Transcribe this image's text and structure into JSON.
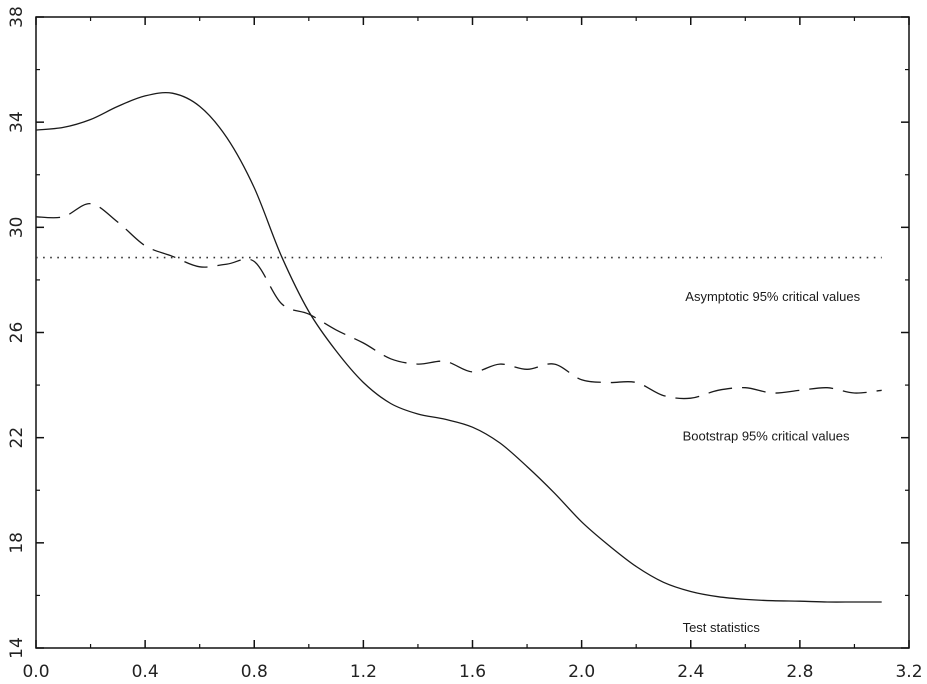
{
  "chart_data": {
    "type": "line",
    "title": "",
    "xlabel": "",
    "ylabel": "",
    "xlim": [
      0.0,
      3.2
    ],
    "ylim": [
      14,
      38
    ],
    "x_ticks": [
      "0.0",
      "0.4",
      "0.8",
      "1.2",
      "1.6",
      "2.0",
      "2.4",
      "2.8",
      "3.2"
    ],
    "y_ticks": [
      "14",
      "18",
      "22",
      "26",
      "30",
      "34",
      "38"
    ],
    "grid": false,
    "legend": "none",
    "annotations": [
      {
        "text": "Asymptotic 95% critical values",
        "x": 2.38,
        "y": 27.2
      },
      {
        "text": "Bootstrap 95% critical values",
        "x": 2.37,
        "y": 21.9
      },
      {
        "text": "Test statistics",
        "x": 2.37,
        "y": 14.6
      }
    ],
    "series": [
      {
        "style": "solid",
        "color": "#1a1a1a",
        "x": [
          0.0,
          0.1,
          0.2,
          0.3,
          0.4,
          0.5,
          0.6,
          0.7,
          0.8,
          0.9,
          1.0,
          1.1,
          1.2,
          1.3,
          1.4,
          1.5,
          1.6,
          1.7,
          1.8,
          1.9,
          2.0,
          2.1,
          2.2,
          2.3,
          2.4,
          2.5,
          2.6,
          2.7,
          2.8,
          2.9,
          3.0,
          3.1
        ],
        "y": [
          33.7,
          33.8,
          34.1,
          34.6,
          35.0,
          35.1,
          34.6,
          33.4,
          31.5,
          28.9,
          26.8,
          25.3,
          24.1,
          23.3,
          22.9,
          22.7,
          22.4,
          21.8,
          20.9,
          19.9,
          18.8,
          17.9,
          17.1,
          16.5,
          16.15,
          15.95,
          15.85,
          15.8,
          15.78,
          15.75,
          15.75,
          15.75
        ]
      },
      {
        "style": "dashed",
        "color": "#1a1a1a",
        "x": [
          0.0,
          0.1,
          0.2,
          0.3,
          0.4,
          0.5,
          0.6,
          0.7,
          0.8,
          0.9,
          1.0,
          1.1,
          1.2,
          1.3,
          1.4,
          1.5,
          1.6,
          1.7,
          1.8,
          1.9,
          2.0,
          2.1,
          2.2,
          2.3,
          2.4,
          2.5,
          2.6,
          2.7,
          2.8,
          2.9,
          3.0,
          3.1
        ],
        "y": [
          30.4,
          30.4,
          30.9,
          30.2,
          29.3,
          28.9,
          28.5,
          28.6,
          28.7,
          27.1,
          26.7,
          26.1,
          25.6,
          25.0,
          24.8,
          24.9,
          24.5,
          24.8,
          24.6,
          24.8,
          24.2,
          24.1,
          24.1,
          23.6,
          23.5,
          23.8,
          23.9,
          23.7,
          23.8,
          23.9,
          23.7,
          23.8
        ]
      },
      {
        "style": "dotted",
        "color": "#333333",
        "x": [
          0.0,
          3.1
        ],
        "y": [
          28.85,
          28.85
        ]
      }
    ]
  }
}
